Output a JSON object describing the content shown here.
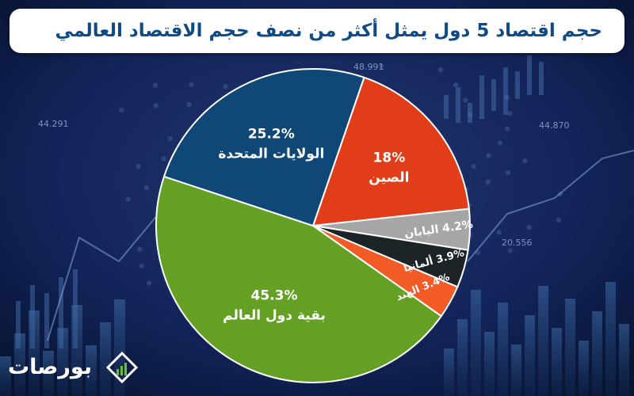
{
  "title": "حجم اقتصاد 5 دول يمثل أكثر من نصف حجم الاقتصاد العالمي",
  "background_numbers": [
    "48.991",
    "44.291",
    "44.870",
    "20.556"
  ],
  "brand": {
    "name": "بورصات",
    "icon": "rising-bars-diamond-icon"
  },
  "chart_data": {
    "type": "pie",
    "start_angle_deg": 19,
    "direction": "clockwise",
    "slices": [
      {
        "label": "الصين",
        "value_label": "18%",
        "value": 18,
        "color": "#e03d18"
      },
      {
        "label": "اليابان",
        "value_label": "4.2%",
        "value": 4.2,
        "color": "#a6a6a6"
      },
      {
        "label": "ألمانيا",
        "value_label": "3.9%",
        "value": 3.9,
        "color": "#1c2428"
      },
      {
        "label": "الهند",
        "value_label": "3.4%",
        "value": 3.4,
        "color": "#f25a26"
      },
      {
        "label": "بقية دول العالم",
        "value_label": "45.3%",
        "value": 45.3,
        "color": "#64a024"
      },
      {
        "label": "الولايات المتحدة",
        "value_label": "25.2%",
        "value": 25.2,
        "color": "#0f4877"
      }
    ]
  }
}
